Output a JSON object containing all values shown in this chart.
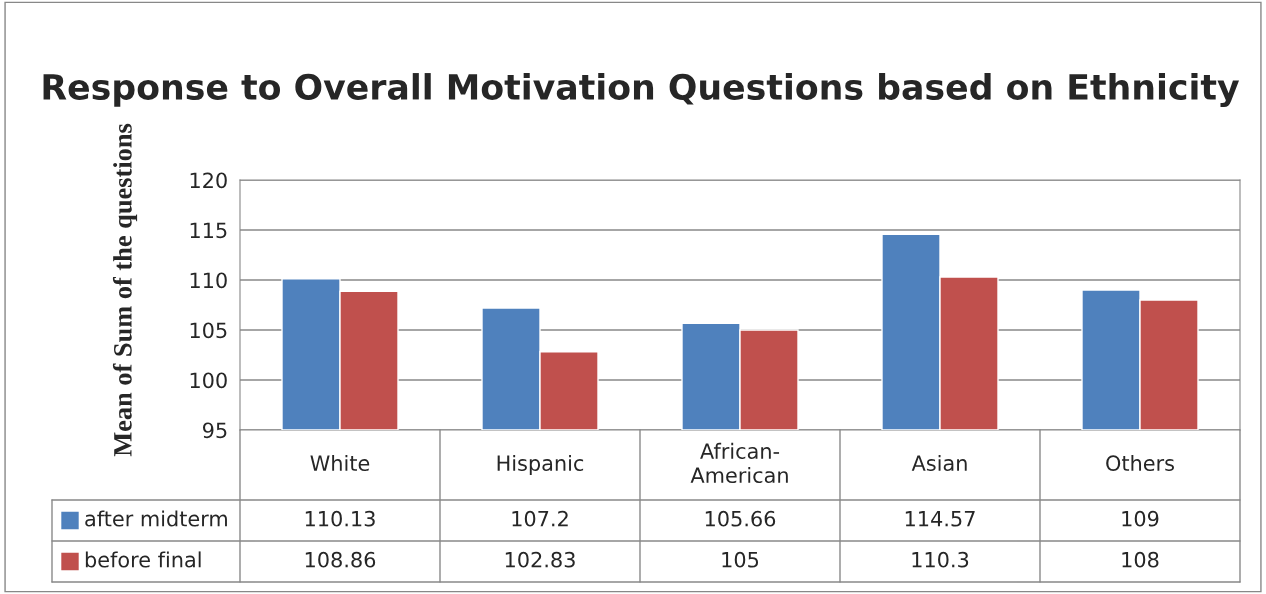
{
  "chart_data": {
    "type": "bar",
    "title": "Response to Overall Motivation Questions based on Ethnicity",
    "ylabel": "Mean of Sum of the questions",
    "categories": [
      "White",
      "Hispanic",
      "African-American",
      "Asian",
      "Others"
    ],
    "series": [
      {
        "name": "after midterm",
        "color": "#4f81bd",
        "values": [
          110.13,
          107.2,
          105.66,
          114.57,
          109
        ]
      },
      {
        "name": "before final",
        "color": "#c0504d",
        "values": [
          108.86,
          102.83,
          105,
          110.3,
          108
        ]
      }
    ],
    "ylim": [
      95,
      120
    ],
    "yticks": [
      95,
      100,
      105,
      110,
      115,
      120
    ],
    "grid": "y",
    "legend": "bottom left",
    "data_labels": true
  }
}
